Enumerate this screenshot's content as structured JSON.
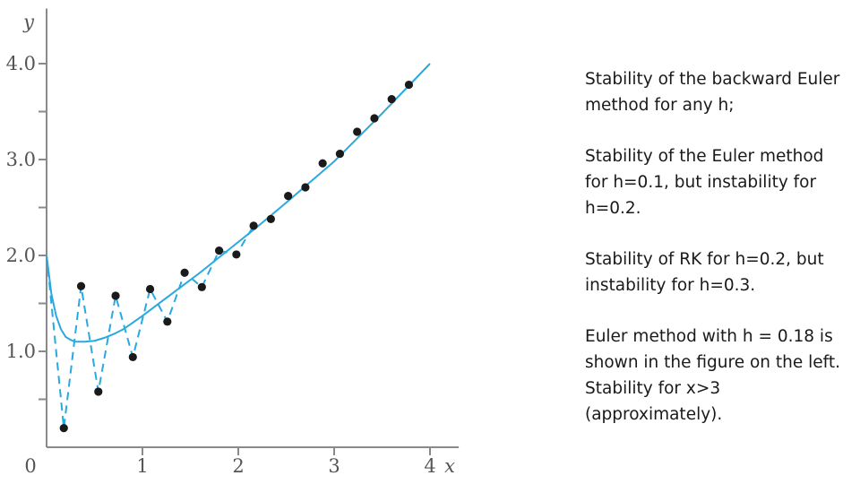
{
  "chart_data": {
    "type": "line",
    "xlabel": "x",
    "ylabel": "y",
    "xlim": [
      0,
      4.3
    ],
    "ylim": [
      0,
      4.5
    ],
    "x_ticks": [
      {
        "value": 0,
        "label": "0"
      },
      {
        "value": 1,
        "label": "1"
      },
      {
        "value": 2,
        "label": "2"
      },
      {
        "value": 3,
        "label": "3"
      },
      {
        "value": 4,
        "label": "4"
      }
    ],
    "y_ticks": [
      {
        "value": 1.0,
        "label": "1.0"
      },
      {
        "value": 2.0,
        "label": "2.0"
      },
      {
        "value": 3.0,
        "label": "3.0"
      },
      {
        "value": 4.0,
        "label": "4.0"
      }
    ],
    "y_minor_ticks": [
      0.5,
      1.5,
      2.5,
      3.5
    ],
    "grid": false,
    "line_color": "#29a9e0",
    "point_color": "#1a1a1a",
    "series": [
      {
        "style": "solid",
        "x": [
          0,
          0.05,
          0.1,
          0.15,
          0.2,
          0.25,
          0.3,
          0.4,
          0.5,
          0.6,
          0.7,
          0.8,
          0.9,
          1.0,
          1.2,
          1.4,
          1.6,
          1.8,
          2.0,
          2.2,
          2.5,
          3.0,
          3.5,
          4.0
        ],
        "y": [
          2.0,
          1.6,
          1.37,
          1.23,
          1.15,
          1.12,
          1.1,
          1.1,
          1.11,
          1.14,
          1.18,
          1.23,
          1.3,
          1.37,
          1.52,
          1.67,
          1.82,
          1.98,
          2.14,
          2.3,
          2.55,
          2.98,
          3.48,
          4.0
        ]
      },
      {
        "style": "dashed",
        "x": [
          0,
          0.18,
          0.36,
          0.54,
          0.72,
          0.9,
          1.08,
          1.26,
          1.44,
          1.62,
          1.8,
          1.98,
          2.16
        ],
        "y": [
          2.0,
          0.2,
          1.68,
          0.58,
          1.58,
          0.94,
          1.65,
          1.31,
          1.82,
          1.67,
          2.05,
          2.01,
          2.31
        ]
      },
      {
        "style": "points",
        "x": [
          0.18,
          0.36,
          0.54,
          0.72,
          0.9,
          1.08,
          1.26,
          1.44,
          1.62,
          1.8,
          1.98,
          2.16,
          2.34,
          2.52,
          2.7,
          2.88,
          3.06,
          3.24,
          3.42,
          3.6,
          3.78
        ],
        "y": [
          0.2,
          1.68,
          0.58,
          1.58,
          0.94,
          1.65,
          1.31,
          1.82,
          1.67,
          2.05,
          2.01,
          2.31,
          2.38,
          2.62,
          2.71,
          2.96,
          3.06,
          3.29,
          3.43,
          3.63,
          3.78
        ]
      }
    ]
  },
  "notes": [
    "Stability of the backward Euler method for any h;",
    "Stability of the Euler method for h=0.1, but instability for h=0.2.",
    "Stability of RK for h=0.2, but instability for h=0.3.",
    "Euler method with h = 0.18 is shown in the figure on the left. Stability for x>3 (approximately)."
  ]
}
